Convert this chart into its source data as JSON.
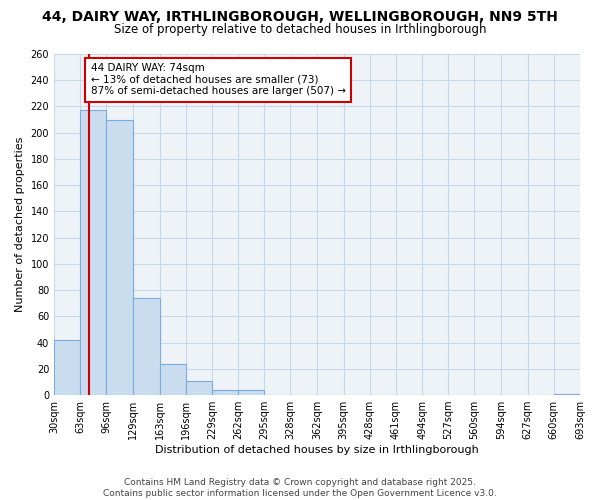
{
  "title": "44, DAIRY WAY, IRTHLINGBOROUGH, WELLINGBOROUGH, NN9 5TH",
  "subtitle": "Size of property relative to detached houses in Irthlingborough",
  "xlabel": "Distribution of detached houses by size in Irthlingborough",
  "ylabel": "Number of detached properties",
  "bar_color": "#c9ddef",
  "bar_edge_color": "#7aace0",
  "grid_color": "#c8d8e8",
  "background_color": "#eef3f8",
  "plot_bg_color": "#eef3f8",
  "bins": [
    30,
    63,
    96,
    129,
    163,
    196,
    229,
    262,
    295,
    328,
    362,
    395,
    428,
    461,
    494,
    527,
    560,
    594,
    627,
    660,
    693
  ],
  "bin_labels": [
    "30sqm",
    "63sqm",
    "96sqm",
    "129sqm",
    "163sqm",
    "196sqm",
    "229sqm",
    "262sqm",
    "295sqm",
    "328sqm",
    "362sqm",
    "395sqm",
    "428sqm",
    "461sqm",
    "494sqm",
    "527sqm",
    "560sqm",
    "594sqm",
    "627sqm",
    "660sqm",
    "693sqm"
  ],
  "counts": [
    42,
    217,
    210,
    74,
    24,
    11,
    4,
    4,
    0,
    0,
    0,
    0,
    0,
    0,
    0,
    0,
    0,
    0,
    0,
    1
  ],
  "ylim": [
    0,
    260
  ],
  "yticks": [
    0,
    20,
    40,
    60,
    80,
    100,
    120,
    140,
    160,
    180,
    200,
    220,
    240,
    260
  ],
  "property_line_x": 74,
  "property_line_color": "#cc0000",
  "annotation_title": "44 DAIRY WAY: 74sqm",
  "annotation_line1": "← 13% of detached houses are smaller (73)",
  "annotation_line2": "87% of semi-detached houses are larger (507) →",
  "annotation_box_color": "#ffffff",
  "annotation_box_edge_color": "#cc0000",
  "footer_line1": "Contains HM Land Registry data © Crown copyright and database right 2025.",
  "footer_line2": "Contains public sector information licensed under the Open Government Licence v3.0.",
  "title_fontsize": 10,
  "subtitle_fontsize": 8.5,
  "axis_label_fontsize": 8,
  "tick_fontsize": 7,
  "annotation_fontsize": 7.5,
  "footer_fontsize": 6.5
}
